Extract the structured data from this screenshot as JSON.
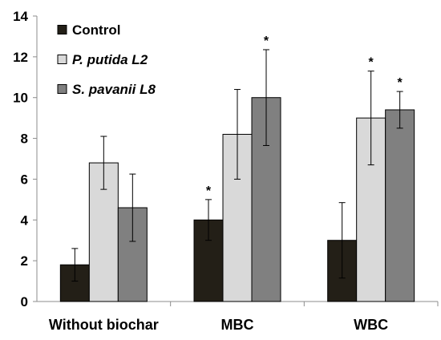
{
  "chart_data": {
    "type": "bar",
    "title": "",
    "xlabel": "",
    "ylabel": "",
    "ylim": [
      0,
      14
    ],
    "yticks": [
      0,
      2,
      4,
      6,
      8,
      10,
      12,
      14
    ],
    "categories": [
      "Without biochar",
      "MBC",
      "WBC"
    ],
    "grid": false,
    "legend": "top-left",
    "series": [
      {
        "name": "Control",
        "italic": false,
        "color": "#231f17",
        "values": [
          1.8,
          4.0,
          3.0
        ],
        "err": [
          0.8,
          1.0,
          1.85
        ],
        "significant": [
          false,
          true,
          false
        ]
      },
      {
        "name": "P. putida L2",
        "italic": true,
        "color": "#d9d9d9",
        "values": [
          6.8,
          8.2,
          9.0
        ],
        "err": [
          1.3,
          2.2,
          2.3
        ],
        "significant": [
          false,
          false,
          true
        ]
      },
      {
        "name": "S. pavanii L8",
        "italic": true,
        "color": "#808080",
        "values": [
          4.6,
          10.0,
          9.4
        ],
        "err": [
          1.65,
          2.35,
          0.9
        ],
        "significant": [
          false,
          true,
          true
        ]
      }
    ],
    "significance_marker": "*"
  }
}
